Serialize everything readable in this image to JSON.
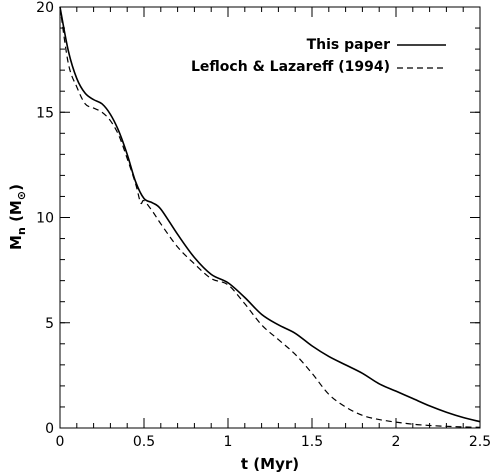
{
  "chart_data": {
    "type": "line",
    "title": "",
    "xlabel": "t (Myr)",
    "ylabel_main": "M",
    "ylabel_sub": "n",
    "ylabel_unit": "(M",
    "ylabel_unit_symbol": "⊙",
    "ylabel_unit_close": ")",
    "xlim": [
      0,
      2.5
    ],
    "ylim": [
      0,
      20
    ],
    "xticks": [
      {
        "value": 0,
        "label": "0"
      },
      {
        "value": 0.5,
        "label": "0.5"
      },
      {
        "value": 1,
        "label": "1"
      },
      {
        "value": 1.5,
        "label": "1.5"
      },
      {
        "value": 2,
        "label": "2"
      },
      {
        "value": 2.5,
        "label": "2.5"
      }
    ],
    "yticks": [
      {
        "value": 0,
        "label": "0"
      },
      {
        "value": 5,
        "label": "5"
      },
      {
        "value": 10,
        "label": "10"
      },
      {
        "value": 15,
        "label": "15"
      },
      {
        "value": 20,
        "label": "20"
      }
    ],
    "x_minor_step": 0.1,
    "y_minor_step": 1,
    "grid": false,
    "legend_position": "top-right",
    "series": [
      {
        "name": "This paper",
        "style": "solid",
        "x": [
          0,
          0.05,
          0.1,
          0.15,
          0.2,
          0.25,
          0.3,
          0.35,
          0.4,
          0.45,
          0.5,
          0.55,
          0.6,
          0.7,
          0.8,
          0.9,
          1.0,
          1.1,
          1.2,
          1.3,
          1.4,
          1.5,
          1.6,
          1.7,
          1.8,
          1.9,
          2.0,
          2.1,
          2.2,
          2.3,
          2.4,
          2.5
        ],
        "y": [
          20,
          17.9,
          16.6,
          15.9,
          15.6,
          15.4,
          14.9,
          14.1,
          13.0,
          11.7,
          10.9,
          10.7,
          10.4,
          9.2,
          8.1,
          7.3,
          6.9,
          6.2,
          5.4,
          4.9,
          4.5,
          3.9,
          3.4,
          3.0,
          2.6,
          2.1,
          1.75,
          1.4,
          1.05,
          0.75,
          0.5,
          0.3
        ]
      },
      {
        "name": "Lefloch & Lazareff (1994)",
        "style": "dashed",
        "x": [
          0,
          0.05,
          0.1,
          0.15,
          0.2,
          0.25,
          0.3,
          0.35,
          0.4,
          0.45,
          0.48,
          0.5,
          0.55,
          0.6,
          0.7,
          0.8,
          0.9,
          1.0,
          1.1,
          1.2,
          1.3,
          1.4,
          1.5,
          1.6,
          1.7,
          1.8,
          1.9,
          2.0,
          2.1,
          2.2,
          2.3,
          2.4,
          2.5
        ],
        "y": [
          20,
          17.3,
          16.2,
          15.4,
          15.2,
          15.0,
          14.6,
          13.9,
          12.8,
          11.6,
          10.7,
          10.8,
          10.3,
          9.7,
          8.6,
          7.8,
          7.1,
          6.8,
          5.9,
          4.9,
          4.2,
          3.5,
          2.6,
          1.6,
          1.0,
          0.6,
          0.4,
          0.28,
          0.18,
          0.12,
          0.08,
          0.05,
          0.03
        ]
      }
    ]
  }
}
